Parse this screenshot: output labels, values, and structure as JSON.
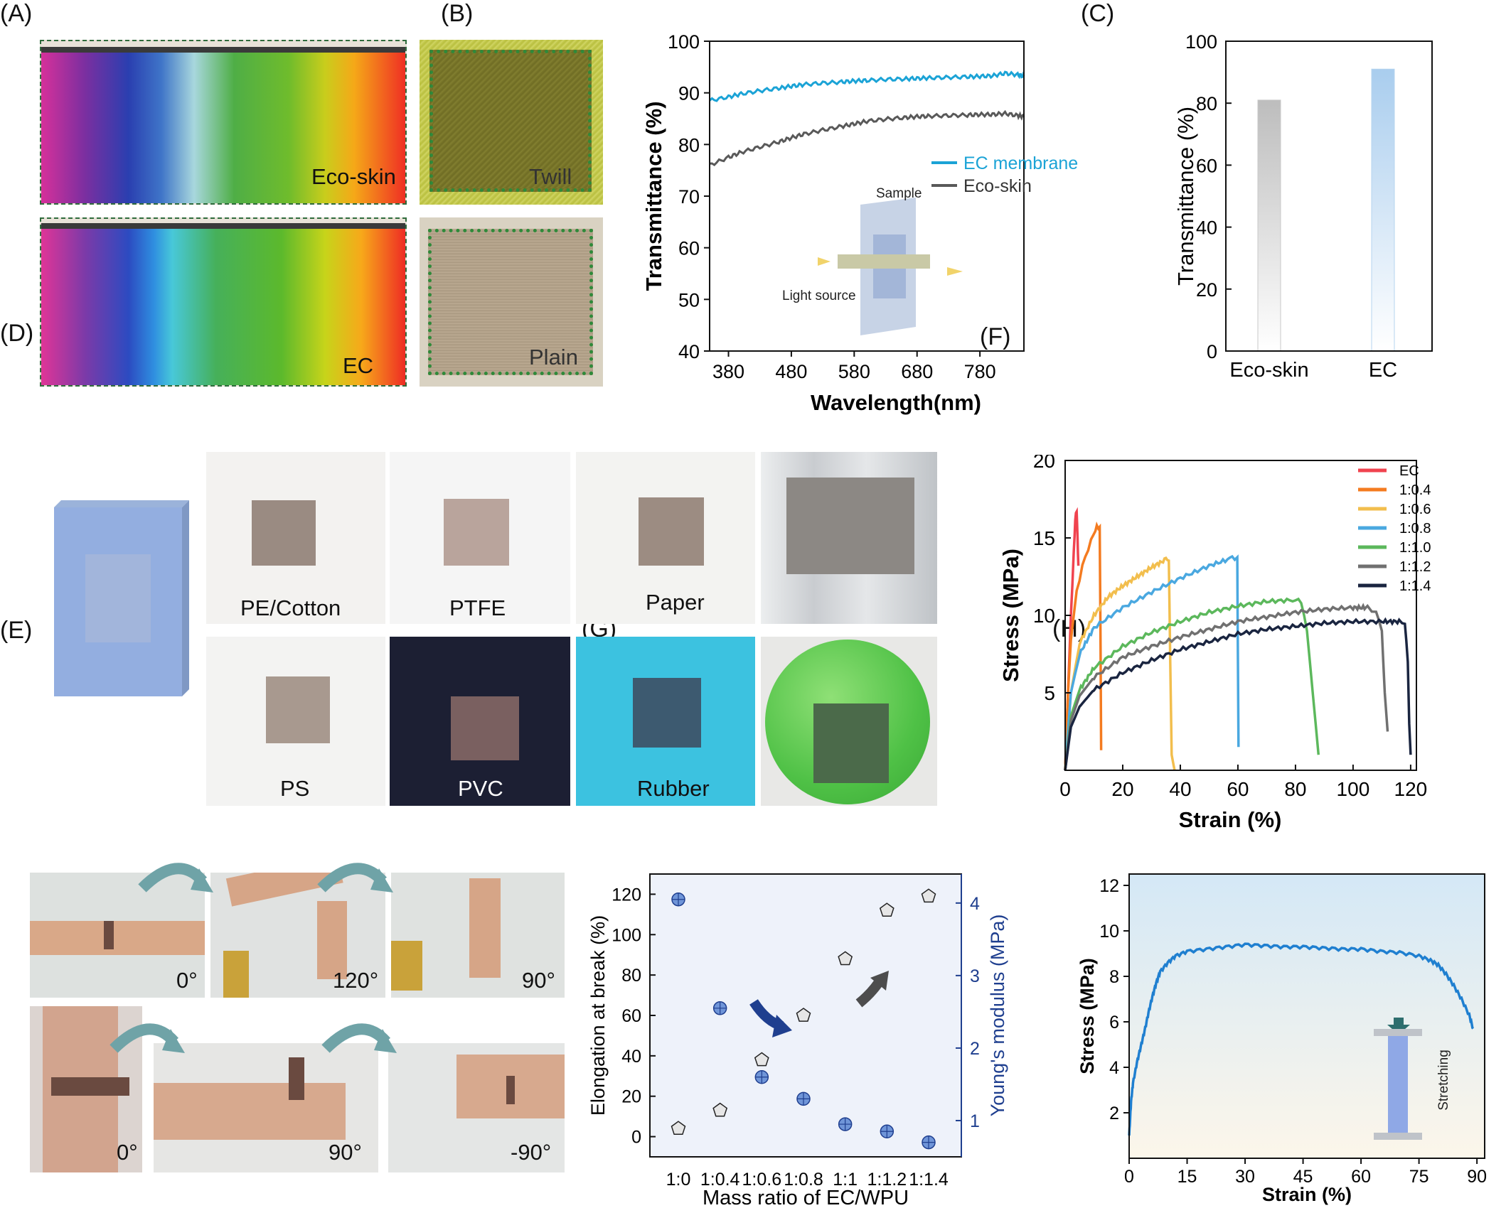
{
  "panel_labels": {
    "A": "(A)",
    "B": "(B)",
    "C": "(C)",
    "D": "(D)",
    "E": "(E)",
    "F": "(F)",
    "G": "(G)",
    "H": "(H)"
  },
  "panelA": {
    "labels": [
      "Eco-skin",
      "Twill",
      "EC",
      "Plain"
    ]
  },
  "panelD": {
    "labels": [
      "PE/Cotton",
      "PTFE",
      "Paper",
      "PS",
      "PVC",
      "Rubber"
    ]
  },
  "panelE": {
    "angles": [
      "0°",
      "120°",
      "90°",
      "0°",
      "90°",
      "-90°"
    ]
  },
  "colors": {
    "ec_blue": "#1ba3d6",
    "eco_gray": "#595959",
    "g_blue": "#1f3f8f",
    "red": "#f0434f",
    "orange": "#f47b20",
    "yellow": "#f2be4d",
    "lightblue": "#4aa8e0",
    "green": "#5cb85c",
    "gray": "#707070",
    "navy": "#1a2540",
    "h_line": "#1f7fd0"
  },
  "chart_data": [
    {
      "id": "B",
      "type": "line",
      "xlabel": "Wavelength(nm)",
      "ylabel": "Transmittance (%)",
      "xlim": [
        350,
        850
      ],
      "ylim": [
        40,
        100
      ],
      "xticks": [
        380,
        480,
        580,
        680,
        780
      ],
      "yticks": [
        40,
        50,
        60,
        70,
        80,
        90,
        100
      ],
      "legend_position": "right",
      "series": [
        {
          "name": "EC membrane",
          "color": "#1ba3d6",
          "x": [
            350,
            380,
            400,
            430,
            460,
            480,
            500,
            530,
            560,
            580,
            600,
            630,
            660,
            680,
            700,
            730,
            760,
            780,
            800,
            820,
            840,
            850
          ],
          "y": [
            88.5,
            89.2,
            89.8,
            90.4,
            90.9,
            91.3,
            91.6,
            91.9,
            92.1,
            92.3,
            92.4,
            92.6,
            92.7,
            92.8,
            92.9,
            93.0,
            93.1,
            93.2,
            93.3,
            93.8,
            93.5,
            93.2
          ]
        },
        {
          "name": "Eco-skin",
          "color": "#595959",
          "x": [
            350,
            380,
            400,
            430,
            460,
            480,
            500,
            530,
            560,
            580,
            600,
            630,
            660,
            680,
            700,
            730,
            760,
            780,
            800,
            820,
            840,
            850
          ],
          "y": [
            76.0,
            77.5,
            78.5,
            79.5,
            80.5,
            81.3,
            82.0,
            82.8,
            83.5,
            84.0,
            84.5,
            84.9,
            85.2,
            85.4,
            85.5,
            85.6,
            85.7,
            85.8,
            85.8,
            86.0,
            85.6,
            85.4
          ]
        }
      ],
      "inset": {
        "sample": "Sample",
        "light": "Light source"
      }
    },
    {
      "id": "C",
      "type": "bar",
      "ylabel": "Transmittance (%)",
      "ylim": [
        0,
        100
      ],
      "yticks": [
        0,
        20,
        40,
        60,
        80,
        100
      ],
      "categories": [
        "Eco-skin",
        "EC"
      ],
      "values": [
        81,
        91
      ]
    },
    {
      "id": "F",
      "type": "line",
      "xlabel": "Strain (%)",
      "ylabel": "Stress (MPa)",
      "xlim": [
        0,
        122
      ],
      "ylim": [
        0,
        20
      ],
      "xticks": [
        0,
        20,
        40,
        60,
        80,
        100,
        120
      ],
      "yticks": [
        5,
        10,
        15,
        20
      ],
      "legend_position": "top-right",
      "series": [
        {
          "name": "EC",
          "color": "#f0434f",
          "x": [
            0,
            1,
            2,
            3,
            3.5,
            4,
            4.3,
            4.6
          ],
          "y": [
            0,
            5,
            10,
            14,
            16.2,
            16.8,
            15,
            13.2
          ]
        },
        {
          "name": "1:0.4",
          "color": "#f47b20",
          "x": [
            0,
            1,
            2,
            4,
            6,
            8,
            10,
            11,
            12,
            12.3,
            12.5
          ],
          "y": [
            0,
            5,
            8.5,
            11.5,
            13.2,
            14.3,
            15.3,
            15.7,
            15.7,
            8,
            1.3
          ]
        },
        {
          "name": "1:0.6",
          "color": "#f2be4d",
          "x": [
            0,
            2,
            5,
            10,
            15,
            20,
            25,
            30,
            35,
            36,
            36.5,
            37,
            38
          ],
          "y": [
            0,
            5,
            8.2,
            10,
            11.2,
            11.9,
            12.5,
            13.1,
            13.6,
            13.6,
            7,
            1,
            0
          ]
        },
        {
          "name": "1:0.8",
          "color": "#4aa8e0",
          "x": [
            0,
            2,
            5,
            10,
            20,
            30,
            40,
            50,
            58,
            59.8,
            60,
            60.2
          ],
          "y": [
            0,
            5,
            7.5,
            9.2,
            10.5,
            11.5,
            12.4,
            13.2,
            13.7,
            13.7,
            7,
            1.5
          ]
        },
        {
          "name": "1:1.0",
          "color": "#5cb85c",
          "x": [
            0,
            2,
            5,
            10,
            20,
            30,
            40,
            50,
            60,
            70,
            80,
            82,
            84,
            86,
            88
          ],
          "y": [
            0,
            3.5,
            5.2,
            6.6,
            8,
            8.9,
            9.6,
            10.2,
            10.6,
            10.9,
            11,
            10.9,
            9,
            5,
            1
          ]
        },
        {
          "name": "1:1.2",
          "color": "#707070",
          "x": [
            0,
            2,
            5,
            10,
            20,
            30,
            40,
            50,
            60,
            70,
            80,
            90,
            100,
            105,
            108,
            110,
            111,
            112
          ],
          "y": [
            0,
            3.2,
            4.8,
            6,
            7.3,
            8,
            8.6,
            9.1,
            9.6,
            9.9,
            10.2,
            10.4,
            10.5,
            10.5,
            10.2,
            9,
            5,
            2.5
          ]
        },
        {
          "name": "1:1.4",
          "color": "#1a2540",
          "x": [
            0,
            2,
            5,
            10,
            20,
            30,
            40,
            50,
            60,
            70,
            80,
            90,
            100,
            110,
            116,
            118,
            119,
            119.5,
            120
          ],
          "y": [
            0,
            2.8,
            4.1,
            5.2,
            6.3,
            7.1,
            7.8,
            8.3,
            8.8,
            9.1,
            9.3,
            9.5,
            9.6,
            9.6,
            9.6,
            9.5,
            7,
            3,
            1
          ]
        }
      ]
    },
    {
      "id": "G",
      "type": "scatter",
      "xlabel": "Mass ratio of EC/WPU",
      "ylabel": "Elongation at break (%)",
      "y2label": "Young's modulus (MPa)",
      "categories": [
        "1:0",
        "1:0.4",
        "1:0.6",
        "1:0.8",
        "1:1",
        "1:1.2",
        "1:1.4"
      ],
      "ylim": [
        -10,
        130
      ],
      "yticks": [
        0,
        20,
        40,
        60,
        80,
        100,
        120
      ],
      "y2lim": [
        0.5,
        4.4
      ],
      "y2ticks": [
        1,
        2,
        3,
        4
      ],
      "series": [
        {
          "name": "Elongation at break",
          "axis": "left",
          "values": [
            4,
            13,
            38,
            60,
            88,
            112,
            119
          ]
        },
        {
          "name": "Young's modulus",
          "axis": "right",
          "values": [
            4.05,
            2.55,
            1.6,
            1.3,
            0.95,
            0.85,
            0.7
          ]
        }
      ]
    },
    {
      "id": "H",
      "type": "line",
      "xlabel": "Strain (%)",
      "ylabel": "Stress (MPa)",
      "xlim": [
        0,
        92
      ],
      "ylim": [
        0,
        12.5
      ],
      "xticks": [
        0,
        15,
        30,
        45,
        60,
        75,
        90
      ],
      "yticks": [
        2,
        4,
        6,
        8,
        10,
        12
      ],
      "inset": {
        "label": "Stretching"
      },
      "series": [
        {
          "name": "",
          "color": "#1f7fd0",
          "x": [
            0,
            0.5,
            1,
            2,
            3,
            4,
            5,
            6,
            7,
            8,
            10,
            12,
            15,
            20,
            25,
            30,
            35,
            40,
            45,
            50,
            55,
            60,
            65,
            70,
            75,
            78,
            80,
            82,
            84,
            86,
            88,
            89
          ],
          "y": [
            1,
            2.5,
            3.3,
            4.2,
            4.9,
            5.6,
            6.4,
            7.1,
            7.7,
            8.2,
            8.6,
            8.9,
            9.1,
            9.2,
            9.3,
            9.4,
            9.35,
            9.3,
            9.3,
            9.25,
            9.2,
            9.2,
            9.1,
            9.05,
            8.9,
            8.7,
            8.5,
            8.1,
            7.6,
            7.0,
            6.3,
            5.7
          ]
        }
      ]
    }
  ]
}
